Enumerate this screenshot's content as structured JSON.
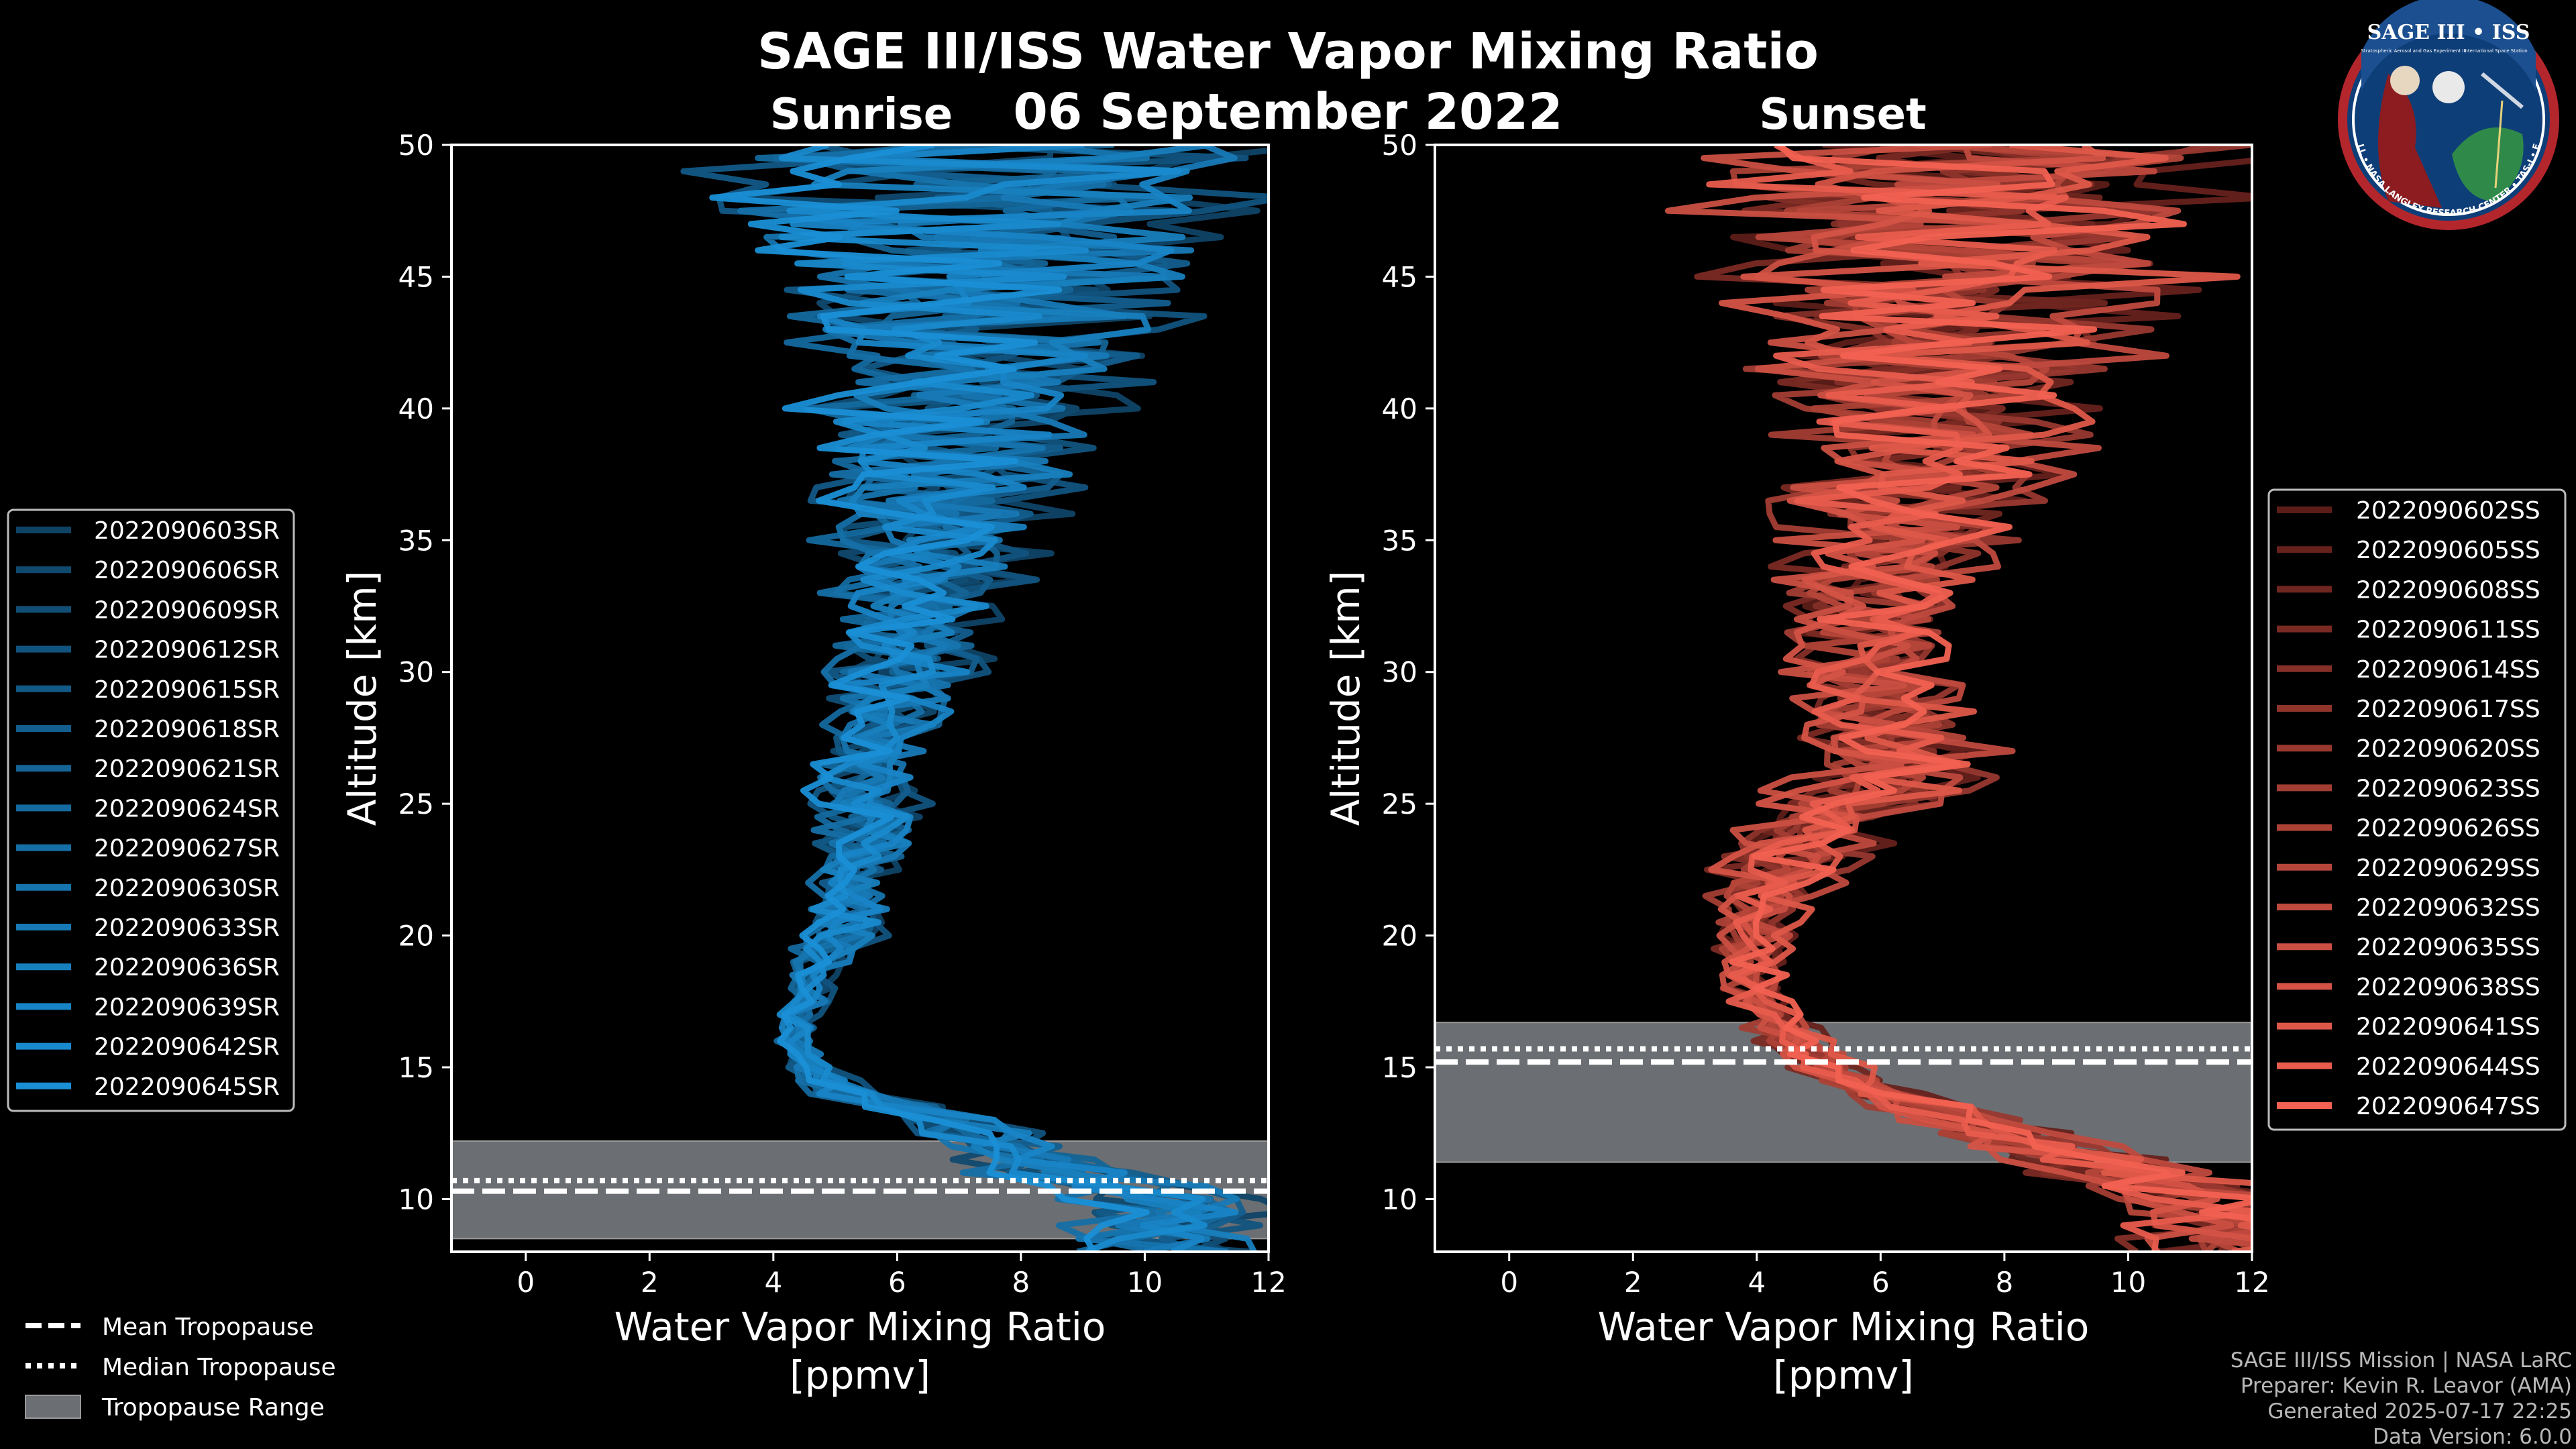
{
  "title": "SAGE III/ISS Water Vapor Mixing Ratio",
  "date": "06 September 2022",
  "colors": {
    "background": "#000000",
    "sunrise": "#1a8fd6",
    "sunset": "#f26151",
    "tropopause_band": "#6b6e72",
    "guide_lines": "#ffffff"
  },
  "logo": {
    "name": "SAGE III • ISS",
    "subtitle_left": "Stratospheric Aerosol and Gas Experiment III",
    "subtitle_right": "International Space Station",
    "ring_text": "BALL • NASA LANGLEY RESEARCH CENTER • TAS-I • ESA"
  },
  "chart_data": [
    {
      "type": "line",
      "panel": "Sunrise",
      "title": "Sunrise",
      "xlabel": "Water Vapor Mixing Ratio [ppmv]",
      "xlabel_lines": [
        "Water Vapor Mixing Ratio",
        "[ppmv]"
      ],
      "ylabel": "Altitude [km]",
      "xlim": [
        -1.2,
        12
      ],
      "ylim": [
        8,
        50
      ],
      "xticks": [
        0,
        2,
        4,
        6,
        8,
        10,
        12
      ],
      "yticks": [
        10,
        15,
        20,
        25,
        30,
        35,
        40,
        45,
        50
      ],
      "grid": false,
      "legend_position": "left",
      "profile_shape": {
        "altitude_km": [
          10,
          11,
          12,
          13,
          14,
          15,
          16,
          17,
          18,
          19,
          20,
          22,
          24,
          26,
          28,
          30,
          32,
          34,
          36,
          38,
          40,
          42,
          44,
          46,
          48,
          50
        ],
        "median_ppmv": [
          10.5,
          8.8,
          7.5,
          6.8,
          5.2,
          4.6,
          4.4,
          4.4,
          4.6,
          4.8,
          5.1,
          5.3,
          5.5,
          5.6,
          5.9,
          6.1,
          6.3,
          6.5,
          6.7,
          6.9,
          7.1,
          7.2,
          7.3,
          7.4,
          7.5,
          7.6
        ],
        "spread_ppmv": [
          1.8,
          1.6,
          1.3,
          1.0,
          0.6,
          0.4,
          0.35,
          0.4,
          0.5,
          0.6,
          0.7,
          0.8,
          0.9,
          1.0,
          1.1,
          1.3,
          1.5,
          1.7,
          2.0,
          2.3,
          2.6,
          3.0,
          3.5,
          4.0,
          4.4,
          4.8
        ]
      },
      "tropopause": {
        "mean_km": 10.3,
        "median_km": 10.7,
        "range_km": [
          8.5,
          12.2
        ]
      },
      "series": [
        {
          "name": "2022090603SR"
        },
        {
          "name": "2022090606SR"
        },
        {
          "name": "2022090609SR"
        },
        {
          "name": "2022090612SR"
        },
        {
          "name": "2022090615SR"
        },
        {
          "name": "2022090618SR"
        },
        {
          "name": "2022090621SR"
        },
        {
          "name": "2022090624SR"
        },
        {
          "name": "2022090627SR"
        },
        {
          "name": "2022090630SR"
        },
        {
          "name": "2022090633SR"
        },
        {
          "name": "2022090636SR"
        },
        {
          "name": "2022090639SR"
        },
        {
          "name": "2022090642SR"
        },
        {
          "name": "2022090645SR"
        }
      ]
    },
    {
      "type": "line",
      "panel": "Sunset",
      "title": "Sunset",
      "xlabel": "Water Vapor Mixing Ratio [ppmv]",
      "xlabel_lines": [
        "Water Vapor Mixing Ratio",
        "[ppmv]"
      ],
      "ylabel": "Altitude [km]",
      "xlim": [
        -1.2,
        12
      ],
      "ylim": [
        8,
        50
      ],
      "xticks": [
        0,
        2,
        4,
        6,
        8,
        10,
        12
      ],
      "yticks": [
        10,
        15,
        20,
        25,
        30,
        35,
        40,
        45,
        50
      ],
      "grid": false,
      "legend_position": "right",
      "profile_shape": {
        "altitude_km": [
          10,
          11,
          12,
          13,
          14,
          15,
          16,
          17,
          18,
          19,
          20,
          21,
          22,
          23,
          24,
          25,
          26,
          27,
          28,
          30,
          32,
          34,
          36,
          38,
          40,
          42,
          44,
          46,
          48,
          50
        ],
        "median_ppmv": [
          11.5,
          10.0,
          8.5,
          7.3,
          6.0,
          5.2,
          4.6,
          4.2,
          4.0,
          3.9,
          4.0,
          4.1,
          4.3,
          4.6,
          5.0,
          5.6,
          6.2,
          6.4,
          6.2,
          5.9,
          6.0,
          6.2,
          6.5,
          6.8,
          7.0,
          7.2,
          7.3,
          7.4,
          7.5,
          7.6
        ],
        "spread_ppmv": [
          1.8,
          1.5,
          1.2,
          1.0,
          0.8,
          0.6,
          0.6,
          0.6,
          0.6,
          0.6,
          0.7,
          0.8,
          1.0,
          1.2,
          1.4,
          1.6,
          1.6,
          1.5,
          1.3,
          1.3,
          1.5,
          1.7,
          2.0,
          2.3,
          2.6,
          3.0,
          3.5,
          4.0,
          4.4,
          4.8
        ]
      },
      "tropopause": {
        "mean_km": 15.2,
        "median_km": 15.7,
        "range_km": [
          11.4,
          16.7
        ]
      },
      "series": [
        {
          "name": "2022090602SS"
        },
        {
          "name": "2022090605SS"
        },
        {
          "name": "2022090608SS"
        },
        {
          "name": "2022090611SS"
        },
        {
          "name": "2022090614SS"
        },
        {
          "name": "2022090617SS"
        },
        {
          "name": "2022090620SS"
        },
        {
          "name": "2022090623SS"
        },
        {
          "name": "2022090626SS"
        },
        {
          "name": "2022090629SS"
        },
        {
          "name": "2022090632SS"
        },
        {
          "name": "2022090635SS"
        },
        {
          "name": "2022090638SS"
        },
        {
          "name": "2022090641SS"
        },
        {
          "name": "2022090644SS"
        },
        {
          "name": "2022090647SS"
        }
      ]
    }
  ],
  "tropopause_legend": {
    "mean": "Mean Tropopause",
    "median": "Median Tropopause",
    "range": "Tropopause Range"
  },
  "credits": [
    "SAGE III/ISS Mission | NASA LaRC",
    "Preparer: Kevin R. Leavor (AMA)",
    "Generated 2025-07-17 22:25",
    "Data Version: 6.0.0"
  ]
}
